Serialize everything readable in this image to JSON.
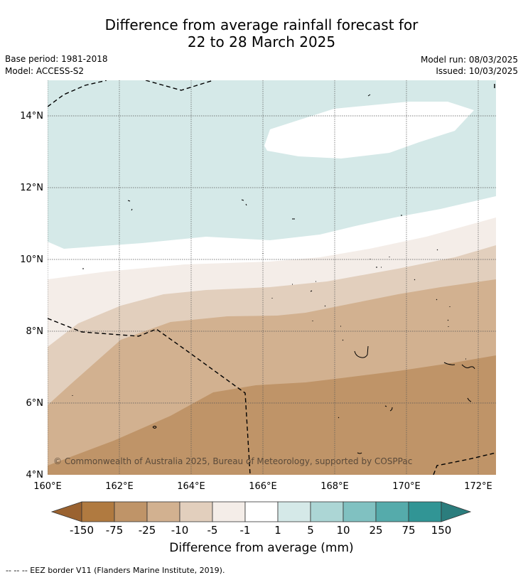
{
  "title_line1": "Difference from average rainfall forecast for",
  "title_line2": "22 to 28 March 2025",
  "base_period": "Base period: 1981-2018",
  "model": "Model: ACCESS-S2",
  "model_run": "Model run: 08/03/2025",
  "issued": "Issued: 10/03/2025",
  "copyright": "© Commonwealth of Australia 2025, Bureau of Meteorology, supported by COSPPac",
  "lon_labels": [
    "160°E",
    "162°E",
    "164°E",
    "166°E",
    "168°E",
    "170°E",
    "172°E"
  ],
  "lat_labels": [
    "4°N",
    "6°N",
    "8°N",
    "10°N",
    "12°N",
    "14°N"
  ],
  "colorbar": {
    "colors": [
      "#9a6230",
      "#b07a40",
      "#bf9468",
      "#d2b190",
      "#e2cfbd",
      "#f4ede8",
      "#ffffff",
      "#d5e9e8",
      "#acd6d5",
      "#80c1c1",
      "#55abab",
      "#319595",
      "#2b7d7d"
    ],
    "ticks": [
      "-150",
      "-75",
      "-25",
      "-10",
      "-5",
      "-1",
      "1",
      "5",
      "10",
      "25",
      "75",
      "150"
    ],
    "label": "Difference from average (mm)"
  },
  "footer": "--  --  -- EEZ border V11 (Flanders Marine Institute, 2019)."
}
